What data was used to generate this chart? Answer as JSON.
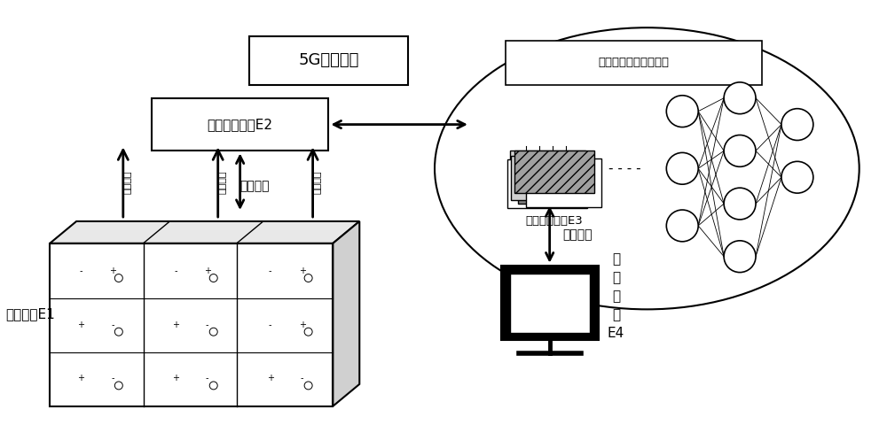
{
  "bg_color": "#ffffff",
  "text_color": "#000000",
  "box_color": "#ffffff",
  "box_edge": "#000000",
  "title_5g": "5G数据传输",
  "title_e2": "信号处理模块E2",
  "title_e1": "测量模块E1",
  "title_e3": "神经网络模块E3",
  "title_db": "多特征参量历史数据库",
  "title_e4_lines": [
    "监",
    "控",
    "中",
    "心",
    "E4"
  ],
  "label_data_transfer1": "数据传输",
  "label_data_transfer2": "数据传输",
  "label_sound": "声音检测",
  "label_temp": "温度检测",
  "label_gas": "气体检测",
  "label_dashes": "- - - -"
}
